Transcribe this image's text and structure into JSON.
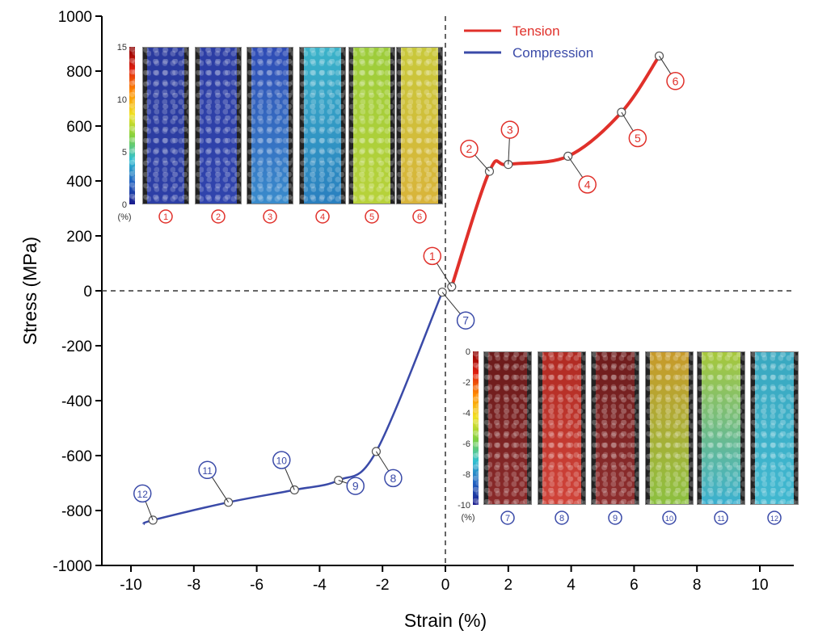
{
  "chart_data": {
    "type": "line",
    "title": "",
    "xlabel": "Strain (%)",
    "ylabel": "Stress (MPa)",
    "xlim": [
      -10.8,
      11.1
    ],
    "ylim": [
      -1000,
      1000
    ],
    "xticks": [
      -10,
      -8,
      -6,
      -4,
      -2,
      0,
      2,
      4,
      6,
      8,
      10
    ],
    "yticks": [
      -1000,
      -800,
      -600,
      -400,
      -200,
      0,
      200,
      400,
      600,
      800,
      1000
    ],
    "grid": false,
    "reference_lines": {
      "x": 0,
      "y": 0,
      "style": "dashed"
    },
    "legend_position": "top-center-right",
    "series": [
      {
        "name": "Tension",
        "color": "#e0302a",
        "x": [
          0.2,
          1.4,
          2.0,
          3.9,
          5.6,
          6.8
        ],
        "y": [
          15,
          435,
          460,
          490,
          650,
          855
        ],
        "point_labels": [
          "1",
          "2",
          "3",
          "4",
          "5",
          "6"
        ]
      },
      {
        "name": "Compression",
        "color": "#3a4aa8",
        "x": [
          -9.6,
          -9.3,
          -6.9,
          -4.8,
          -3.4,
          -2.2,
          -0.1
        ],
        "y": [
          -850,
          -835,
          -770,
          -725,
          -690,
          -585,
          -5
        ],
        "point_labels": [
          "",
          "12",
          "11",
          "10",
          "9",
          "8",
          "7"
        ]
      }
    ],
    "insets": [
      {
        "name": "tension-strain-maps",
        "colorbar_ticks": [
          "15",
          "10",
          "5",
          "0"
        ],
        "colorbar_unit": "(%)",
        "panel_labels": [
          "1",
          "2",
          "3",
          "4",
          "5",
          "6"
        ],
        "panel_colors": [
          [
            "#2a3a9e",
            "#2d3fa6"
          ],
          [
            "#2c3da4",
            "#3044ad"
          ],
          [
            "#2f4bb5",
            "#3a8ccc"
          ],
          [
            "#3bb3c9",
            "#2a7fbf"
          ],
          [
            "#9ccc3a",
            "#b8d23a"
          ],
          [
            "#c8c83a",
            "#d9b43a"
          ]
        ]
      },
      {
        "name": "compression-strain-maps",
        "colorbar_ticks": [
          "0",
          "-2",
          "-4",
          "-6",
          "-8",
          "-10"
        ],
        "colorbar_unit": "(%)",
        "panel_labels": [
          "7",
          "8",
          "9",
          "10",
          "11",
          "12"
        ],
        "panel_colors": [
          [
            "#6b1a1a",
            "#8a2a2a"
          ],
          [
            "#b02a22",
            "#d0443a"
          ],
          [
            "#6e1c1c",
            "#8e2e2e"
          ],
          [
            "#c89a2a",
            "#8cc040"
          ],
          [
            "#a8c83a",
            "#3ab0d0"
          ],
          [
            "#3aa8c0",
            "#40b8d0"
          ]
        ]
      }
    ]
  }
}
